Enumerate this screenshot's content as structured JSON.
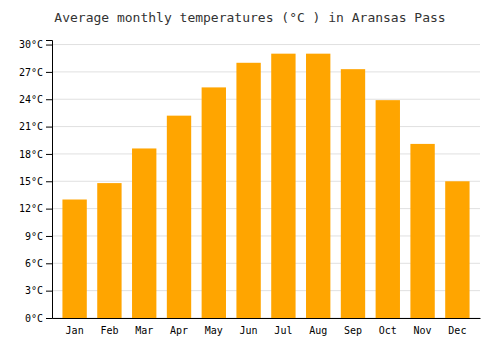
{
  "chart_data": {
    "type": "bar",
    "title": "Average monthly temperatures (°C ) in Aransas Pass",
    "categories": [
      "Jan",
      "Feb",
      "Mar",
      "Apr",
      "May",
      "Jun",
      "Jul",
      "Aug",
      "Sep",
      "Oct",
      "Nov",
      "Dec"
    ],
    "values": [
      13.0,
      14.8,
      18.6,
      22.2,
      25.3,
      28.0,
      29.0,
      29.0,
      27.3,
      23.9,
      19.1,
      15.0
    ],
    "color": "#FFA500",
    "ylim": [
      0,
      30.5
    ],
    "yticks": [
      {
        "value": 0,
        "label": "0°C"
      },
      {
        "value": 3,
        "label": "3°C"
      },
      {
        "value": 6,
        "label": "6°C"
      },
      {
        "value": 9,
        "label": "9°C"
      },
      {
        "value": 12,
        "label": "12°C"
      },
      {
        "value": 15,
        "label": "15°C"
      },
      {
        "value": 18,
        "label": "18°C"
      },
      {
        "value": 21,
        "label": "21°C"
      },
      {
        "value": 24,
        "label": "24°C"
      },
      {
        "value": 27,
        "label": "27°C"
      },
      {
        "value": 30,
        "label": "30°C"
      }
    ],
    "grid": true
  }
}
